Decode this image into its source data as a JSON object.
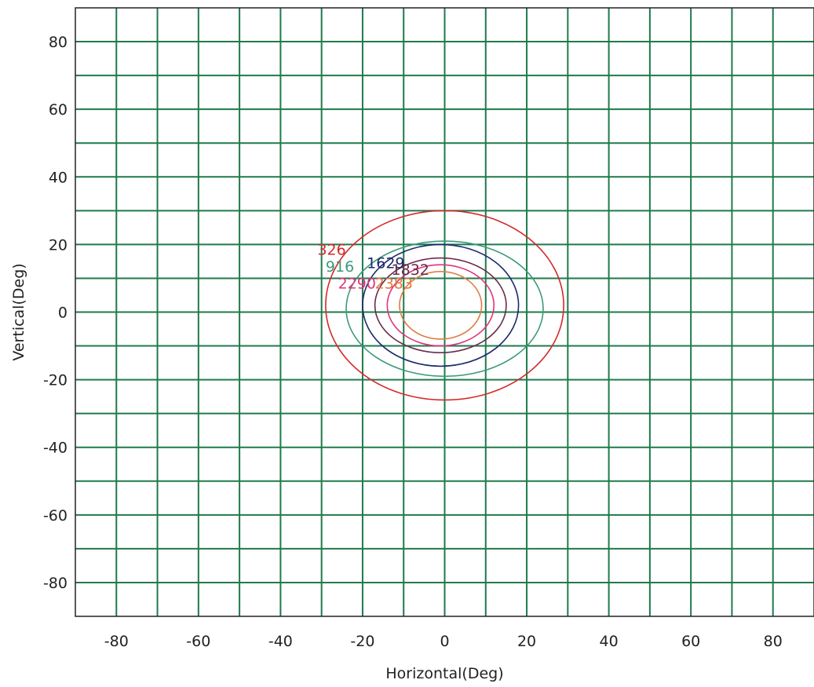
{
  "chart_data": {
    "type": "contour",
    "xlabel": "Horizontal(Deg)",
    "ylabel": "Vertical(Deg)",
    "xlim": [
      -90,
      90
    ],
    "ylim": [
      -90,
      90
    ],
    "x_ticks": [
      -80,
      -60,
      -40,
      -20,
      0,
      20,
      40,
      60,
      80
    ],
    "y_ticks": [
      80,
      60,
      40,
      20,
      0,
      -20,
      -40,
      -60,
      -80
    ],
    "grid": true,
    "grid_step": 10,
    "grid_color": "#1f7a4c",
    "contours": [
      {
        "label": "326",
        "color": "#d42a2a",
        "center": [
          0,
          2
        ],
        "rx": 29,
        "ry": 28,
        "label_at": [
          -31,
          17
        ]
      },
      {
        "label": "916",
        "color": "#3b9a7a",
        "center": [
          0,
          1
        ],
        "rx": 24,
        "ry": 20,
        "label_at": [
          -29,
          12
        ]
      },
      {
        "label": "1629",
        "color": "#1c2a6e",
        "center": [
          -1,
          2
        ],
        "rx": 19,
        "ry": 18,
        "label_at": [
          -19,
          13
        ]
      },
      {
        "label": "1832",
        "color": "#6a2a4a",
        "center": [
          -1,
          2
        ],
        "rx": 16,
        "ry": 14,
        "label_at": [
          -13,
          11
        ]
      },
      {
        "label": "2290",
        "color": "#e0357a",
        "center": [
          -1,
          2
        ],
        "rx": 13,
        "ry": 12,
        "label_at": [
          -26,
          7
        ]
      },
      {
        "label": "2383",
        "color": "#e07a40",
        "center": [
          -1,
          2
        ],
        "rx": 10,
        "ry": 10,
        "label_at": [
          -17,
          7
        ]
      }
    ]
  }
}
